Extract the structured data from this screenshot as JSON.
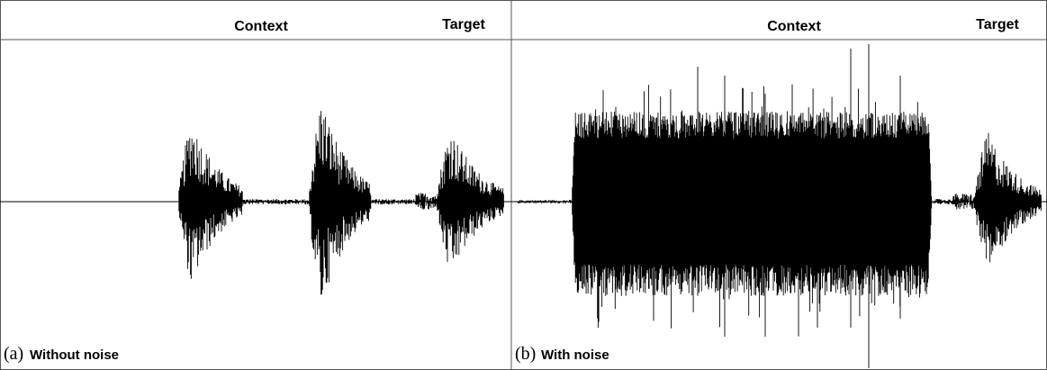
{
  "panels": [
    {
      "header": {
        "context": "Context",
        "target": "Target"
      },
      "caption": {
        "letter": "(a)",
        "text": "Without noise"
      }
    },
    {
      "header": {
        "context": "Context",
        "target": "Target"
      },
      "caption": {
        "letter": "(b)",
        "text": "With noise"
      }
    }
  ]
}
